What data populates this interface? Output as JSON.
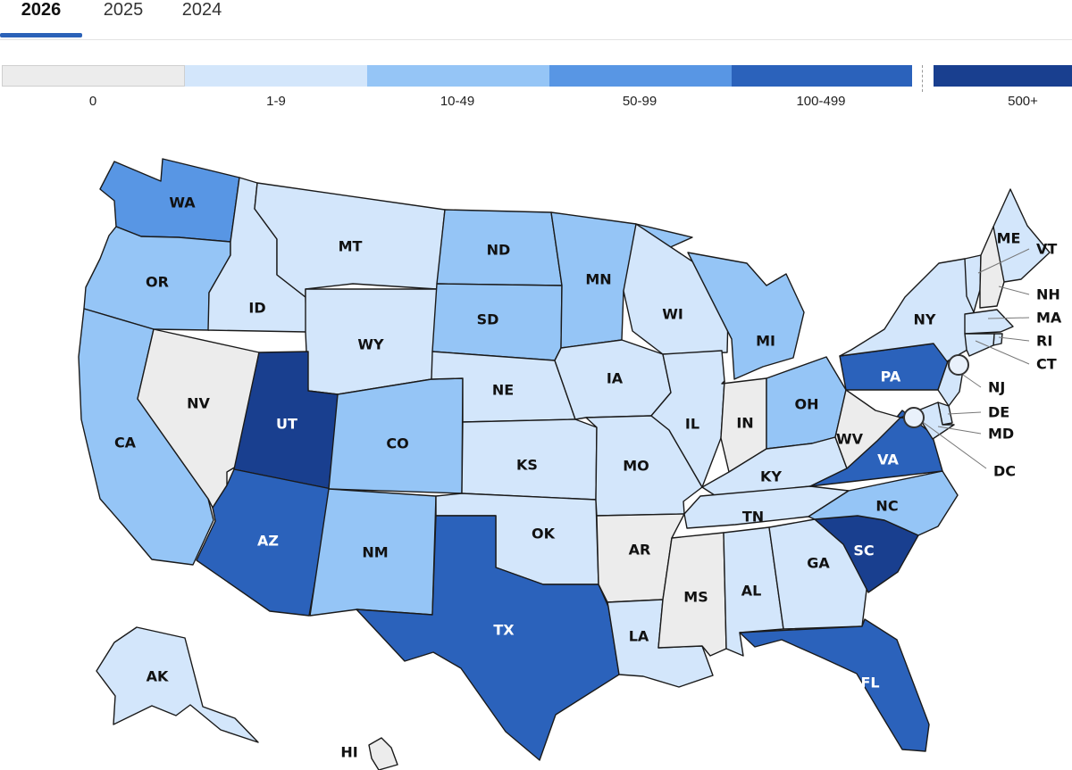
{
  "tabs": [
    {
      "label": "2026",
      "active": true
    },
    {
      "label": "2025",
      "active": false
    },
    {
      "label": "2024",
      "active": false
    }
  ],
  "legend": [
    {
      "label": "0",
      "color": "#ececec"
    },
    {
      "label": "1-9",
      "color": "#d3e6fb"
    },
    {
      "label": "10-49",
      "color": "#95c5f6"
    },
    {
      "label": "50-99",
      "color": "#5896e4"
    },
    {
      "label": "100-499",
      "color": "#2b62bb"
    },
    {
      "label": "500+",
      "color": "#193f8f"
    }
  ],
  "states": [
    {
      "abbr": "WA",
      "bin": 3
    },
    {
      "abbr": "OR",
      "bin": 2
    },
    {
      "abbr": "CA",
      "bin": 2
    },
    {
      "abbr": "ID",
      "bin": 1
    },
    {
      "abbr": "NV",
      "bin": 0
    },
    {
      "abbr": "MT",
      "bin": 1
    },
    {
      "abbr": "WY",
      "bin": 1
    },
    {
      "abbr": "UT",
      "bin": 5
    },
    {
      "abbr": "AZ",
      "bin": 4
    },
    {
      "abbr": "CO",
      "bin": 2
    },
    {
      "abbr": "NM",
      "bin": 2
    },
    {
      "abbr": "ND",
      "bin": 2
    },
    {
      "abbr": "SD",
      "bin": 2
    },
    {
      "abbr": "NE",
      "bin": 1
    },
    {
      "abbr": "KS",
      "bin": 1
    },
    {
      "abbr": "OK",
      "bin": 1
    },
    {
      "abbr": "TX",
      "bin": 4
    },
    {
      "abbr": "MN",
      "bin": 2
    },
    {
      "abbr": "IA",
      "bin": 1
    },
    {
      "abbr": "MO",
      "bin": 1
    },
    {
      "abbr": "AR",
      "bin": 0
    },
    {
      "abbr": "LA",
      "bin": 1
    },
    {
      "abbr": "WI",
      "bin": 1
    },
    {
      "abbr": "IL",
      "bin": 1
    },
    {
      "abbr": "MI",
      "bin": 2
    },
    {
      "abbr": "IN",
      "bin": 0
    },
    {
      "abbr": "OH",
      "bin": 2
    },
    {
      "abbr": "KY",
      "bin": 1
    },
    {
      "abbr": "TN",
      "bin": 1
    },
    {
      "abbr": "MS",
      "bin": 0
    },
    {
      "abbr": "AL",
      "bin": 1
    },
    {
      "abbr": "GA",
      "bin": 1
    },
    {
      "abbr": "FL",
      "bin": 4
    },
    {
      "abbr": "SC",
      "bin": 5
    },
    {
      "abbr": "NC",
      "bin": 2
    },
    {
      "abbr": "VA",
      "bin": 4
    },
    {
      "abbr": "WV",
      "bin": 0
    },
    {
      "abbr": "PA",
      "bin": 4
    },
    {
      "abbr": "NY",
      "bin": 1
    },
    {
      "abbr": "ME",
      "bin": 1
    },
    {
      "abbr": "AK",
      "bin": 1
    },
    {
      "abbr": "HI",
      "bin": 0
    },
    {
      "abbr": "VT",
      "bin": 1
    },
    {
      "abbr": "NH",
      "bin": 0
    },
    {
      "abbr": "MA",
      "bin": 1
    },
    {
      "abbr": "RI",
      "bin": 1
    },
    {
      "abbr": "CT",
      "bin": 1
    },
    {
      "abbr": "NJ",
      "bin": 1
    },
    {
      "abbr": "DE",
      "bin": 1
    },
    {
      "abbr": "MD",
      "bin": 1
    },
    {
      "abbr": "DC",
      "bin": 2
    }
  ]
}
